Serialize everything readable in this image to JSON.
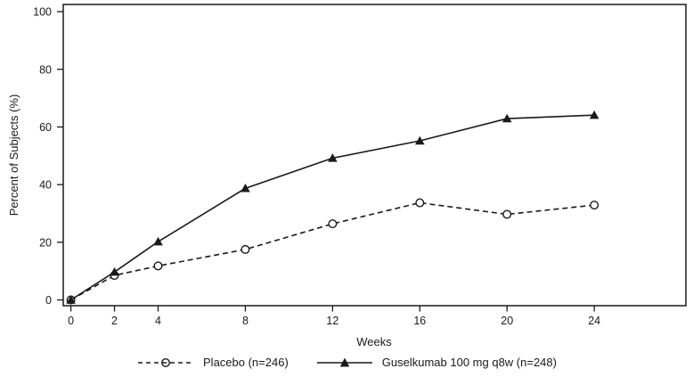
{
  "chart_data": {
    "type": "line",
    "title": "",
    "xlabel": "Weeks",
    "ylabel": "Percent of Subjects (%)",
    "x": [
      0,
      2,
      4,
      8,
      12,
      16,
      20,
      24
    ],
    "xticks": [
      0,
      2,
      4,
      8,
      12,
      16,
      20,
      24
    ],
    "yticks": [
      0,
      20,
      40,
      60,
      80,
      100
    ],
    "xlim": [
      -0.35,
      28.2
    ],
    "ylim": [
      -2,
      102.5
    ],
    "grid": false,
    "legend_position": "bottom-center",
    "series": [
      {
        "name": "placebo",
        "label": "Placebo (n=246)",
        "line_style": "dashed",
        "marker": "open-circle",
        "color": "#1a1a1a",
        "values": [
          0,
          8.5,
          11.8,
          17.5,
          26.4,
          33.7,
          29.7,
          32.9
        ]
      },
      {
        "name": "guselkumab-100mg-q8w",
        "label": "Guselkumab 100 mg q8w (n=248)",
        "line_style": "solid",
        "marker": "filled-triangle",
        "color": "#1a1a1a",
        "values": [
          0,
          9.7,
          20.2,
          38.7,
          49.2,
          55.2,
          62.9,
          64.1
        ]
      }
    ]
  },
  "colors": {
    "axis": "#1a1a1a",
    "background": "#ffffff"
  }
}
